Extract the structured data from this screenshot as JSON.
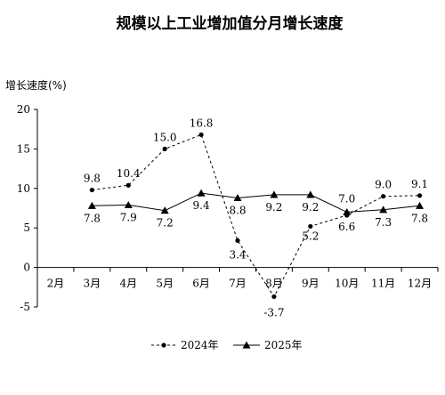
{
  "chart_data": {
    "type": "line",
    "title": "规模以上工业增加值分月增长速度",
    "ylabel": "增长速度(%)",
    "xlabel": "",
    "categories": [
      "2月",
      "3月",
      "4月",
      "5月",
      "6月",
      "7月",
      "8月",
      "9月",
      "10月",
      "11月",
      "12月"
    ],
    "ylim": [
      -5,
      20
    ],
    "yticks": [
      "20",
      "15",
      "10",
      "5",
      "0",
      "-5"
    ],
    "grid": false,
    "legend_position": "bottom-center",
    "series": [
      {
        "name": "2024年",
        "style": "dashed",
        "marker": "circle",
        "color": "#000000",
        "values": [
          null,
          9.8,
          10.4,
          15.0,
          16.8,
          3.4,
          -3.7,
          5.2,
          6.6,
          9.0,
          9.1
        ],
        "labels": [
          "",
          "9.8",
          "10.4",
          "15.0",
          "16.8",
          "3.4",
          "-3.7",
          "5.2",
          "6.6",
          "9.0",
          "9.1"
        ]
      },
      {
        "name": "2025年",
        "style": "solid",
        "marker": "triangle",
        "color": "#000000",
        "values": [
          null,
          7.8,
          7.9,
          7.2,
          9.4,
          8.8,
          9.2,
          9.2,
          7.0,
          7.3,
          7.8
        ],
        "labels": [
          "",
          "7.8",
          "7.9",
          "7.2",
          "9.4",
          "8.8",
          "9.2",
          "9.2",
          "7.0",
          "7.3",
          "7.8"
        ]
      }
    ]
  }
}
